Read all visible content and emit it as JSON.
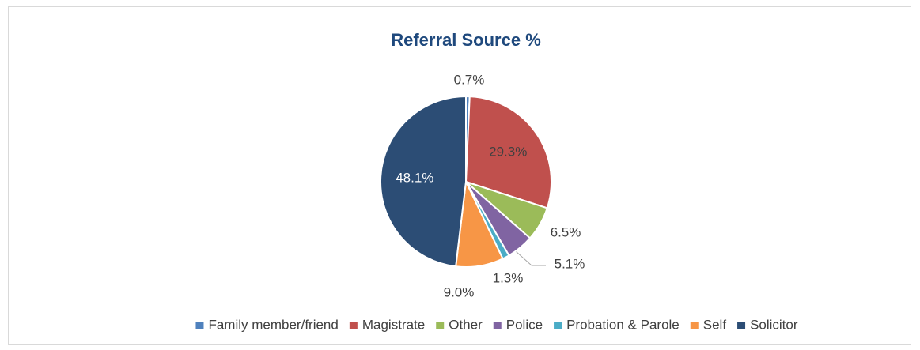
{
  "chart_data": {
    "type": "pie",
    "title": "Referral Source %",
    "categories": [
      "Family member/friend",
      "Magistrate",
      "Other",
      "Police",
      "Probation & Parole",
      "Self",
      "Solicitor"
    ],
    "values": [
      0.7,
      29.3,
      6.5,
      5.1,
      1.3,
      9.0,
      48.1
    ],
    "value_labels": [
      "0.7%",
      "29.3%",
      "6.5%",
      "5.1%",
      "1.3%",
      "9.0%",
      "48.1%"
    ],
    "colors": [
      "#4f81bd",
      "#c0504d",
      "#9bbb59",
      "#8064a2",
      "#4bacc6",
      "#f79646",
      "#2c4d75"
    ],
    "legend": "bottom"
  }
}
